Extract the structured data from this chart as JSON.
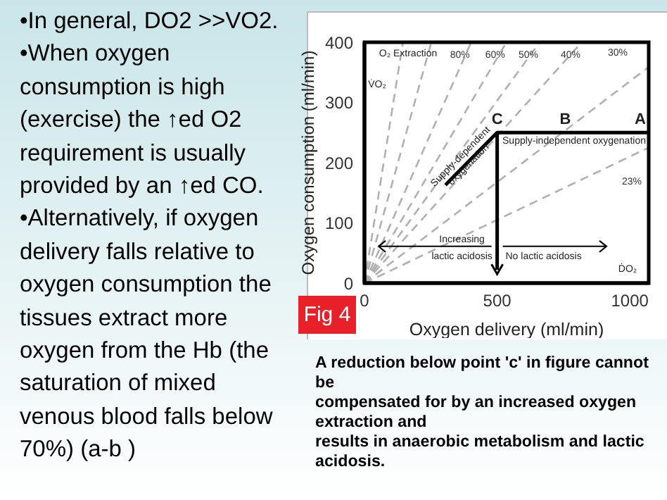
{
  "chart_data": {
    "type": "line",
    "title": "Fig 4",
    "xlabel": "Oxygen delivery (ml/min)",
    "ylabel": "Oxygen consumption (ml/min)",
    "xlim": [
      0,
      1071
    ],
    "ylim": [
      0,
      400
    ],
    "xticks": [
      0,
      500,
      1000
    ],
    "yticks": [
      0,
      100,
      200,
      300,
      400
    ],
    "series": [
      {
        "color": "#b0b0b0",
        "line_style": "dashed",
        "x": [
          0,
          145
        ],
        "values": [
          0,
          400
        ]
      },
      {
        "color": "#b0b0b0",
        "line_style": "dashed",
        "x": [
          0,
          252
        ],
        "values": [
          0,
          400
        ]
      },
      {
        "name": "80%",
        "color": "#b0b0b0",
        "line_style": "dashed",
        "x": [
          0,
          402
        ],
        "values": [
          0,
          400
        ]
      },
      {
        "name": "60%",
        "color": "#b0b0b0",
        "line_style": "dashed",
        "x": [
          0,
          535
        ],
        "values": [
          0,
          400
        ]
      },
      {
        "name": "50%",
        "color": "#b0b0b0",
        "line_style": "dashed",
        "x": [
          0,
          660
        ],
        "values": [
          0,
          400
        ]
      },
      {
        "name": "40%",
        "color": "#b0b0b0",
        "line_style": "dashed",
        "x": [
          0,
          819
        ],
        "values": [
          0,
          400
        ]
      },
      {
        "name": "30%",
        "color": "#b0b0b0",
        "line_style": "dashed",
        "x": [
          0,
          1071
        ],
        "values": [
          0,
          359
        ]
      },
      {
        "name": "23%",
        "color": "#b0b0b0",
        "line_style": "dashed",
        "x": [
          0,
          1071
        ],
        "values": [
          0,
          225
        ]
      },
      {
        "color": "#000000",
        "line_style": "solid",
        "x": [
          305,
          500,
          1071
        ],
        "values": [
          163,
          250,
          250
        ]
      },
      {
        "color": "#000000",
        "line_style": "solid",
        "x": [
          500,
          500
        ],
        "values": [
          250,
          22
        ]
      }
    ],
    "annotations": [
      "•In general, DO2 >>VO2.\n•When oxygen consumption is high (exercise) the ↑ed O2 requirement is usually provided by an ↑ed CO.\n•Alternatively, if oxygen delivery falls relative to oxygen consumption the tissues extract more oxygen from the Hb (the saturation of mixed venous blood falls below 70%) (a-b )",
      "A reduction below point 'c' in figure cannot be\ncompensated for by an increased oxygen extraction and\nresults in anaerobic metabolism and lactic acidosis.",
      "O₂ Extraction",
      "V̇O₂",
      "ḊO₂",
      "Supply-independent oxygenation",
      {
        "text": "Increasing\nlactic acidosis",
        "x": 500,
        "y": 61
      },
      {
        "text": "No lactic acidosis",
        "x": 500,
        "y": 61
      },
      {
        "text": "C",
        "x": 500,
        "y": 250
      },
      {
        "text": "B",
        "x": 757,
        "y": 250
      },
      {
        "text": "A",
        "x": 1071,
        "y": 250
      },
      {
        "text": "Supply-dependent\noxygenation",
        "x": 385,
        "y": 200
      }
    ]
  }
}
